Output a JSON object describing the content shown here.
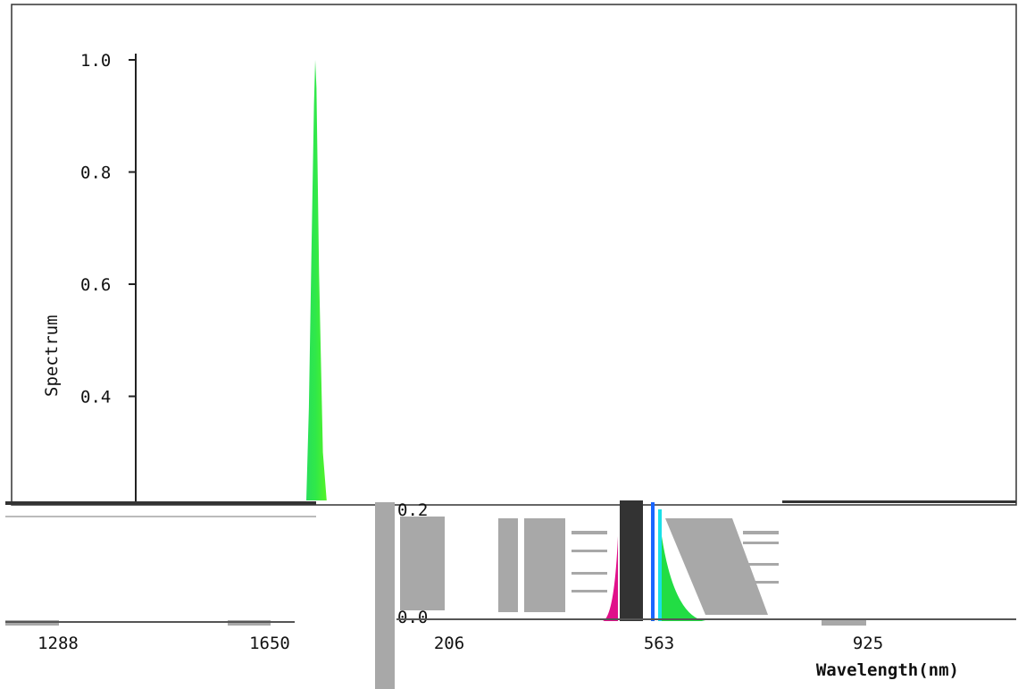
{
  "chart_data": {
    "type": "area",
    "xlabel": "Wavelength(nm)",
    "ylabel": "Spectrum",
    "xlim": [
      206,
      1650
    ],
    "ylim": [
      0,
      1.0
    ],
    "x_ticks": [
      "206",
      "563",
      "925",
      "1288",
      "1650"
    ],
    "y_ticks": [
      "0.0",
      "0.2",
      "0.4",
      "0.6",
      "0.8",
      "1.0"
    ],
    "grid": false,
    "series": [
      {
        "x": [
          450,
          480,
          500,
          510,
          520,
          530,
          540,
          545,
          550,
          560,
          575,
          590,
          610,
          640
        ],
        "values": [
          0.0,
          0.03,
          0.1,
          0.2,
          0.38,
          0.65,
          0.92,
          1.0,
          0.95,
          0.62,
          0.3,
          0.12,
          0.04,
          0.0
        ]
      }
    ],
    "colors": {
      "magenta": "#e0108a",
      "blue": "#1a66ff",
      "cyan": "#19e0e8",
      "green": "#22dd44",
      "lime": "#66ff00",
      "glitch_gray": "#a8a8a8",
      "glitch_dark": "#333333"
    }
  }
}
